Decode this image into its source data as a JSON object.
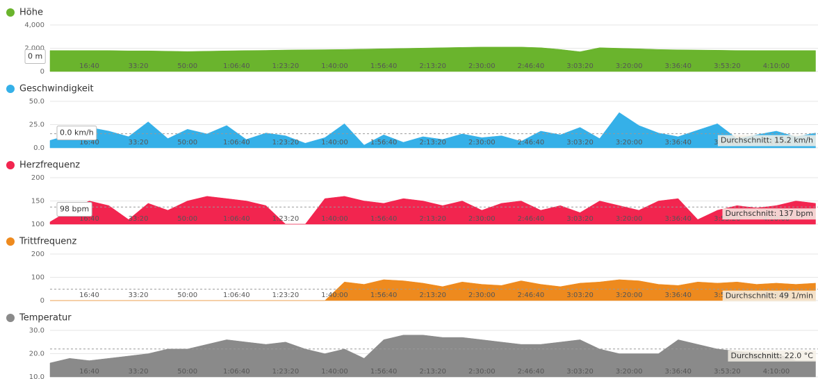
{
  "chart_data": [
    {
      "type": "area",
      "title": "Höhe",
      "color": "#6ab42d",
      "x": [
        200,
        600,
        1000,
        1400,
        1800,
        2200,
        2600,
        3000,
        3400,
        3800,
        4200,
        4600,
        5000,
        5400,
        5800,
        6200,
        6600,
        7000,
        7400,
        7800,
        8200,
        8600,
        9000,
        9400,
        9800,
        10200,
        10600,
        11000,
        11400,
        11800,
        12200,
        12600,
        13000,
        13400,
        13800,
        14200,
        14600,
        15000,
        15400,
        15800
      ],
      "values": [
        1800,
        1800,
        1800,
        1800,
        1780,
        1780,
        1750,
        1720,
        1750,
        1780,
        1800,
        1820,
        1850,
        1870,
        1880,
        1900,
        1930,
        1960,
        1990,
        2020,
        2050,
        2080,
        2100,
        2100,
        2100,
        2050,
        1900,
        1700,
        2050,
        2000,
        1950,
        1900,
        1870,
        1850,
        1830,
        1810,
        1800,
        1800,
        1800,
        1800
      ],
      "xlim": [
        200,
        15850
      ],
      "xticks": [
        {
          "value": 1000,
          "label": "16:40"
        },
        {
          "value": 2000,
          "label": "33:20"
        },
        {
          "value": 3000,
          "label": "50:00"
        },
        {
          "value": 4000,
          "label": "1:06:40"
        },
        {
          "value": 5000,
          "label": "1:23:20"
        },
        {
          "value": 6000,
          "label": "1:40:00"
        },
        {
          "value": 7000,
          "label": "1:56:40"
        },
        {
          "value": 8000,
          "label": "2:13:20"
        },
        {
          "value": 9000,
          "label": "2:30:00"
        },
        {
          "value": 10000,
          "label": "2:46:40"
        },
        {
          "value": 11000,
          "label": "3:03:20"
        },
        {
          "value": 12000,
          "label": "3:20:00"
        },
        {
          "value": 13000,
          "label": "3:36:40"
        },
        {
          "value": 14000,
          "label": "3:53:20"
        },
        {
          "value": 15000,
          "label": "4:10:00"
        }
      ],
      "ylim": [
        0,
        4000
      ],
      "yticks": [
        0,
        {
          "value": 2000,
          "label": "2,000"
        },
        {
          "value": 4000,
          "label": "4,000"
        }
      ],
      "grid": true,
      "cursor_label": "0 m"
    },
    {
      "type": "area",
      "title": "Geschwindigkeit",
      "color": "#35b0e8",
      "x": [
        200,
        600,
        1000,
        1400,
        1800,
        2200,
        2600,
        3000,
        3400,
        3800,
        4200,
        4600,
        5000,
        5400,
        5800,
        6200,
        6600,
        7000,
        7400,
        7800,
        8200,
        8600,
        9000,
        9400,
        9800,
        10200,
        10600,
        11000,
        11400,
        11800,
        12200,
        12600,
        13000,
        13400,
        13800,
        14200,
        14600,
        15000,
        15400,
        15800
      ],
      "values": [
        8,
        14,
        22,
        18,
        12,
        28,
        10,
        20,
        15,
        24,
        9,
        16,
        13,
        5,
        11,
        26,
        3,
        14,
        6,
        12,
        9,
        15,
        11,
        13,
        7,
        18,
        14,
        22,
        10,
        38,
        24,
        16,
        12,
        19,
        26,
        10,
        14,
        18,
        12,
        16
      ],
      "xlim": [
        200,
        15850
      ],
      "xticks": [
        {
          "value": 1000,
          "label": "16:40"
        },
        {
          "value": 2000,
          "label": "33:20"
        },
        {
          "value": 3000,
          "label": "50:00"
        },
        {
          "value": 4000,
          "label": "1:06:40"
        },
        {
          "value": 5000,
          "label": "1:23:20"
        },
        {
          "value": 6000,
          "label": "1:40:00"
        },
        {
          "value": 7000,
          "label": "1:56:40"
        },
        {
          "value": 8000,
          "label": "2:13:20"
        },
        {
          "value": 9000,
          "label": "2:30:00"
        },
        {
          "value": 10000,
          "label": "2:46:40"
        },
        {
          "value": 11000,
          "label": "3:03:20"
        },
        {
          "value": 12000,
          "label": "3:20:00"
        },
        {
          "value": 13000,
          "label": "3:36:40"
        },
        {
          "value": 14000,
          "label": "3:53:20"
        },
        {
          "value": 15000,
          "label": "4:10:00"
        }
      ],
      "ylim": [
        0,
        50
      ],
      "yticks": [
        {
          "value": 0,
          "label": "0.0"
        },
        {
          "value": 25,
          "label": "25.0"
        },
        {
          "value": 50,
          "label": "50.0"
        }
      ],
      "grid": true,
      "average": {
        "value": 15.2,
        "label": "Durchschnitt: 15.2 km/h"
      },
      "cursor_label": "0.0 km/h"
    },
    {
      "type": "area",
      "title": "Herzfrequenz",
      "color": "#f2254f",
      "x": [
        200,
        600,
        1000,
        1400,
        1800,
        2200,
        2600,
        3000,
        3400,
        3800,
        4200,
        4600,
        5000,
        5400,
        5800,
        6200,
        6600,
        7000,
        7400,
        7800,
        8200,
        8600,
        9000,
        9400,
        9800,
        10200,
        10600,
        11000,
        11400,
        11800,
        12200,
        12600,
        13000,
        13400,
        13800,
        14200,
        14600,
        15000,
        15400,
        15800
      ],
      "values": [
        105,
        130,
        150,
        140,
        110,
        145,
        130,
        150,
        160,
        155,
        150,
        140,
        100,
        100,
        155,
        160,
        150,
        145,
        155,
        150,
        140,
        150,
        130,
        145,
        150,
        130,
        140,
        125,
        150,
        140,
        130,
        150,
        155,
        110,
        130,
        140,
        135,
        140,
        150,
        145
      ],
      "xlim": [
        200,
        15850
      ],
      "xticks": [
        {
          "value": 1000,
          "label": "16:40"
        },
        {
          "value": 2000,
          "label": "33:20"
        },
        {
          "value": 3000,
          "label": "50:00"
        },
        {
          "value": 4000,
          "label": "1:06:40"
        },
        {
          "value": 5000,
          "label": "1:23:20"
        },
        {
          "value": 6000,
          "label": "1:40:00"
        },
        {
          "value": 7000,
          "label": "1:56:40"
        },
        {
          "value": 8000,
          "label": "2:13:20"
        },
        {
          "value": 9000,
          "label": "2:30:00"
        },
        {
          "value": 10000,
          "label": "2:46:40"
        },
        {
          "value": 11000,
          "label": "3:03:20"
        },
        {
          "value": 12000,
          "label": "3:20:00"
        },
        {
          "value": 13000,
          "label": "3:36:40"
        },
        {
          "value": 14000,
          "label": "3:53:20"
        },
        {
          "value": 15000,
          "label": "4:10:00"
        }
      ],
      "ylim": [
        100,
        200
      ],
      "yticks": [
        100,
        150,
        200
      ],
      "grid": true,
      "average": {
        "value": 137,
        "label": "Durchschnitt: 137 bpm"
      },
      "cursor_label": "98 bpm"
    },
    {
      "type": "area",
      "title": "Trittfrequenz",
      "color": "#ee8a1e",
      "x": [
        200,
        600,
        1000,
        1400,
        1800,
        2200,
        2600,
        3000,
        3400,
        3800,
        4200,
        4600,
        5000,
        5400,
        5800,
        6200,
        6600,
        7000,
        7400,
        7800,
        8200,
        8600,
        9000,
        9400,
        9800,
        10200,
        10600,
        11000,
        11400,
        11800,
        12200,
        12600,
        13000,
        13400,
        13800,
        14200,
        14600,
        15000,
        15400,
        15800
      ],
      "values": [
        0,
        0,
        0,
        0,
        0,
        0,
        0,
        0,
        0,
        0,
        0,
        0,
        0,
        0,
        0,
        80,
        70,
        90,
        85,
        75,
        60,
        80,
        70,
        65,
        85,
        70,
        60,
        75,
        80,
        90,
        85,
        70,
        65,
        80,
        75,
        80,
        70,
        75,
        70,
        75
      ],
      "xlim": [
        200,
        15850
      ],
      "xticks": [
        {
          "value": 1000,
          "label": "16:40"
        },
        {
          "value": 2000,
          "label": "33:20"
        },
        {
          "value": 3000,
          "label": "50:00"
        },
        {
          "value": 4000,
          "label": "1:06:40"
        },
        {
          "value": 5000,
          "label": "1:23:20"
        },
        {
          "value": 6000,
          "label": "1:40:00"
        },
        {
          "value": 7000,
          "label": "1:56:40"
        },
        {
          "value": 8000,
          "label": "2:13:20"
        },
        {
          "value": 9000,
          "label": "2:30:00"
        },
        {
          "value": 10000,
          "label": "2:46:40"
        },
        {
          "value": 11000,
          "label": "3:03:20"
        },
        {
          "value": 12000,
          "label": "3:20:00"
        },
        {
          "value": 13000,
          "label": "3:36:40"
        },
        {
          "value": 14000,
          "label": "3:53:20"
        },
        {
          "value": 15000,
          "label": "4:10:00"
        }
      ],
      "ylim": [
        0,
        200
      ],
      "yticks": [
        0,
        100,
        200
      ],
      "grid": true,
      "average": {
        "value": 49,
        "label": "Durchschnitt: 49 1/min"
      }
    },
    {
      "type": "area",
      "title": "Temperatur",
      "color": "#8a8a8a",
      "x": [
        200,
        600,
        1000,
        1400,
        1800,
        2200,
        2600,
        3000,
        3400,
        3800,
        4200,
        4600,
        5000,
        5400,
        5800,
        6200,
        6600,
        7000,
        7400,
        7800,
        8200,
        8600,
        9000,
        9400,
        9800,
        10200,
        10600,
        11000,
        11400,
        11800,
        12200,
        12600,
        13000,
        13400,
        13800,
        14200,
        14600,
        15000,
        15400,
        15800
      ],
      "values": [
        16,
        18,
        17,
        18,
        19,
        20,
        22,
        22,
        24,
        26,
        25,
        24,
        25,
        22,
        20,
        22,
        18,
        26,
        28,
        28,
        27,
        27,
        26,
        25,
        24,
        24,
        25,
        26,
        22,
        20,
        20,
        20,
        26,
        24,
        22,
        21,
        20,
        20,
        17,
        17
      ],
      "xlim": [
        200,
        15850
      ],
      "xticks": [
        {
          "value": 1000,
          "label": "16:40"
        },
        {
          "value": 2000,
          "label": "33:20"
        },
        {
          "value": 3000,
          "label": "50:00"
        },
        {
          "value": 4000,
          "label": "1:06:40"
        },
        {
          "value": 5000,
          "label": "1:23:20"
        },
        {
          "value": 6000,
          "label": "1:40:00"
        },
        {
          "value": 7000,
          "label": "1:56:40"
        },
        {
          "value": 8000,
          "label": "2:13:20"
        },
        {
          "value": 9000,
          "label": "2:30:00"
        },
        {
          "value": 10000,
          "label": "2:46:40"
        },
        {
          "value": 11000,
          "label": "3:03:20"
        },
        {
          "value": 12000,
          "label": "3:20:00"
        },
        {
          "value": 13000,
          "label": "3:36:40"
        },
        {
          "value": 14000,
          "label": "3:53:20"
        },
        {
          "value": 15000,
          "label": "4:10:00"
        }
      ],
      "ylim": [
        10,
        30
      ],
      "yticks": [
        {
          "value": 10,
          "label": "10.0"
        },
        {
          "value": 20,
          "label": "20.0"
        },
        {
          "value": 30,
          "label": "30.0"
        }
      ],
      "grid": true,
      "average": {
        "value": 22.0,
        "label": "Durchschnitt: 22.0 °C"
      }
    }
  ]
}
